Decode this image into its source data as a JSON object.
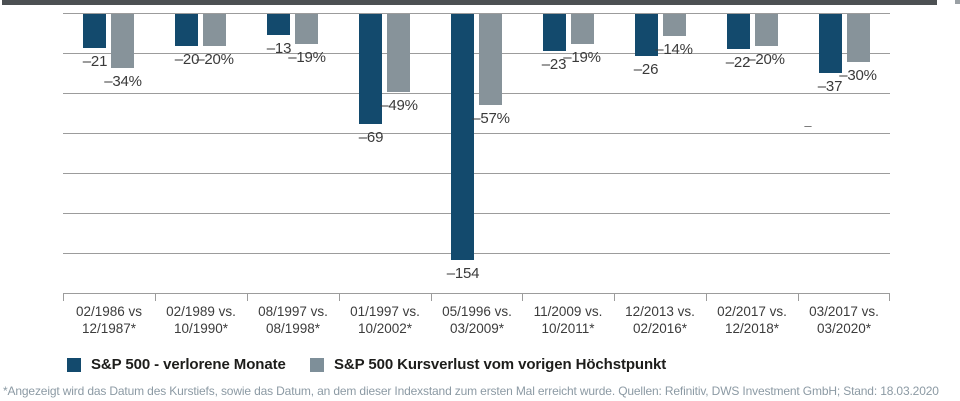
{
  "chart_data": {
    "type": "bar",
    "title": "",
    "xlabel": "",
    "ylabel": "",
    "ylim": [
      -175,
      0
    ],
    "gridline_step": 25,
    "grid": true,
    "legend_position": "bottom",
    "categories": [
      [
        "02/1986 vs",
        "12/1987*"
      ],
      [
        "02/1989 vs.",
        "10/1990*"
      ],
      [
        "08/1997 vs.",
        "08/1998*"
      ],
      [
        "01/1997 vs.",
        "10/2002*"
      ],
      [
        "05/1996 vs.",
        "03/2009*"
      ],
      [
        "11/2009 vs.",
        "10/2011*"
      ],
      [
        "12/2013 vs.",
        "02/2016*"
      ],
      [
        "02/2017 vs.",
        "12/2018*"
      ],
      [
        "03/2017 vs.",
        "03/2020*"
      ]
    ],
    "series": [
      {
        "name": "S&P 500 - verlorene Monate",
        "color": "#134a6d",
        "values": [
          -21,
          -20,
          -13,
          -69,
          -154,
          -23,
          -26,
          -22,
          -37
        ],
        "labels": [
          "–21",
          "–20",
          "–13",
          "–69",
          "–154",
          "–23",
          "–26",
          "–22",
          "–37"
        ]
      },
      {
        "name": "S&P 500 Kursverlust vom vorigen Höchstpunkt",
        "color": "#87939a",
        "values": [
          -34,
          -20,
          -19,
          -49,
          -57,
          -19,
          -14,
          -20,
          -30
        ],
        "labels": [
          "–34%",
          "–20%",
          "–19%",
          "–49%",
          "–57%",
          "–19%",
          "–14%",
          "–20%",
          "–30%"
        ]
      }
    ]
  },
  "legend": {
    "items": [
      {
        "label": "S&P 500 - verlorene Monate",
        "color": "#134a6d"
      },
      {
        "label": "S&P 500 Kursverlust vom vorigen Höchstpunkt",
        "color": "#7e8f99"
      }
    ]
  },
  "footnote": {
    "text": "*Angezeigt wird das Datum des Kurstiefs, sowie das Datum, an dem dieser Indexstand zum ersten Mal erreicht wurde. Quellen: Refinitiv, DWS Investment GmbH; Stand: 18.03.2020"
  },
  "artifacts": {
    "stray_dash": "–"
  }
}
